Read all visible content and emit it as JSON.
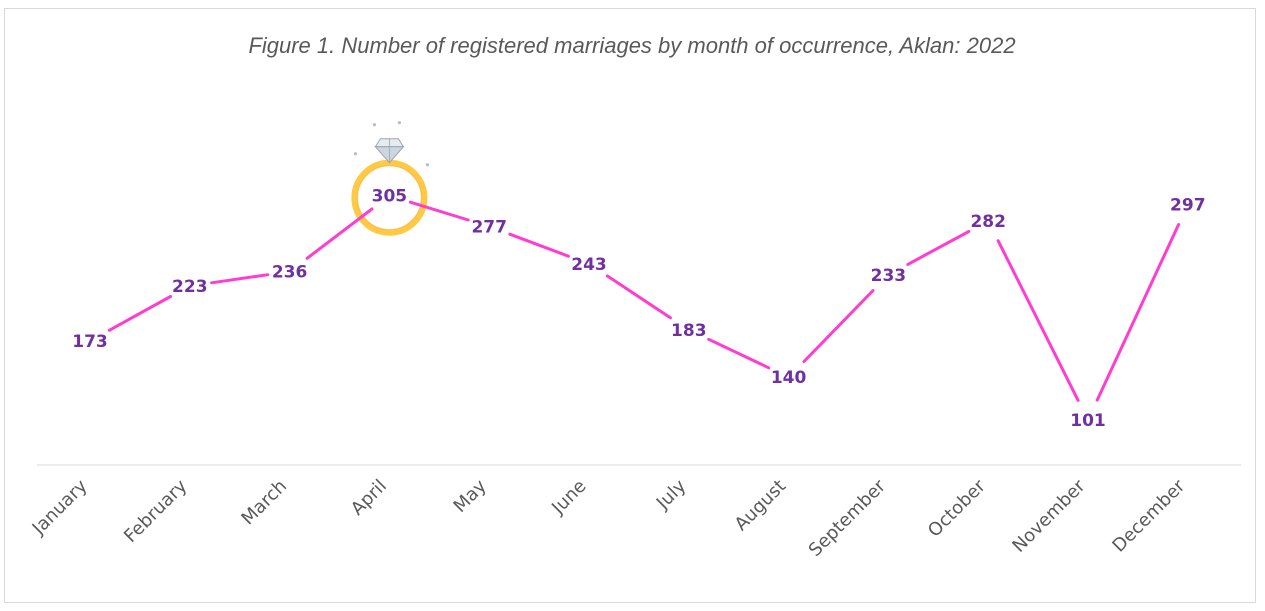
{
  "chart_data": {
    "type": "line",
    "title": "Figure 1. Number of registered marriages by month of occurrence, Aklan: 2022",
    "categories": [
      "January",
      "February",
      "March",
      "April",
      "May",
      "June",
      "July",
      "August",
      "September",
      "October",
      "November",
      "December"
    ],
    "series": [
      {
        "values": [
          173,
          223,
          236,
          305,
          277,
          243,
          183,
          140,
          233,
          282,
          101,
          297
        ]
      }
    ],
    "xlabel": "",
    "ylabel": "",
    "data_labels": true,
    "grid": false,
    "legend": "none",
    "highlight": {
      "category": "April",
      "icon": "diamond-ring-icon"
    },
    "colors": {
      "line": "#ff3dcf",
      "data_label": "#7030a0",
      "ring": "#ffc943",
      "diamond": "#cdd6de",
      "axis": "#d9d9d9",
      "tick_label": "#595959",
      "title": "#595959"
    }
  }
}
